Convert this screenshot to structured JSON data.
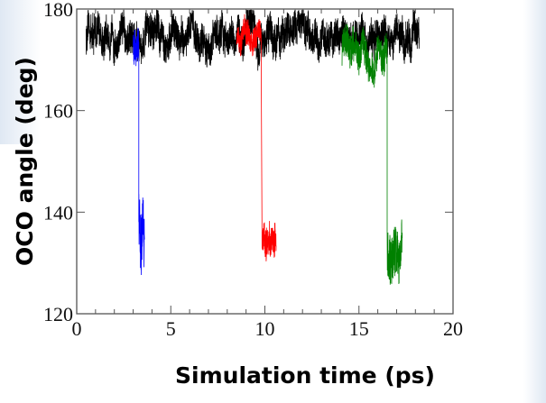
{
  "chart_data": {
    "type": "line",
    "title": "",
    "xlabel": "Simulation time (ps)",
    "ylabel": "OCO angle (deg)",
    "xlim": [
      0,
      20
    ],
    "ylim": [
      120,
      180
    ],
    "xticks": [
      "0",
      "5",
      "10",
      "15",
      "20"
    ],
    "yticks": [
      "120",
      "140",
      "160",
      "180"
    ],
    "grid": false,
    "series": [
      {
        "name": "black",
        "color": "#000000",
        "segments": [
          {
            "t": [
              0.5,
              18.2
            ],
            "mean": 174.5,
            "noise": 4
          }
        ]
      },
      {
        "name": "blue",
        "color": "#0000ff",
        "segments": [
          {
            "t": [
              3.0,
              3.3
            ],
            "mean": 173,
            "noise": 4
          },
          {
            "t": [
              3.3,
              3.6
            ],
            "mean": 138,
            "noise": 8
          }
        ]
      },
      {
        "name": "red",
        "color": "#ff0000",
        "segments": [
          {
            "t": [
              8.5,
              9.8
            ],
            "mean": 175,
            "noise": 3
          },
          {
            "t": [
              9.85,
              10.6
            ],
            "mean": 135,
            "noise": 4
          }
        ]
      },
      {
        "name": "green",
        "color": "#008000",
        "segments": [
          {
            "t": [
              14.1,
              16.5
            ],
            "mean": 172,
            "noise": 4
          },
          {
            "t": [
              16.5,
              17.3
            ],
            "mean": 132,
            "noise": 6
          }
        ]
      }
    ]
  }
}
